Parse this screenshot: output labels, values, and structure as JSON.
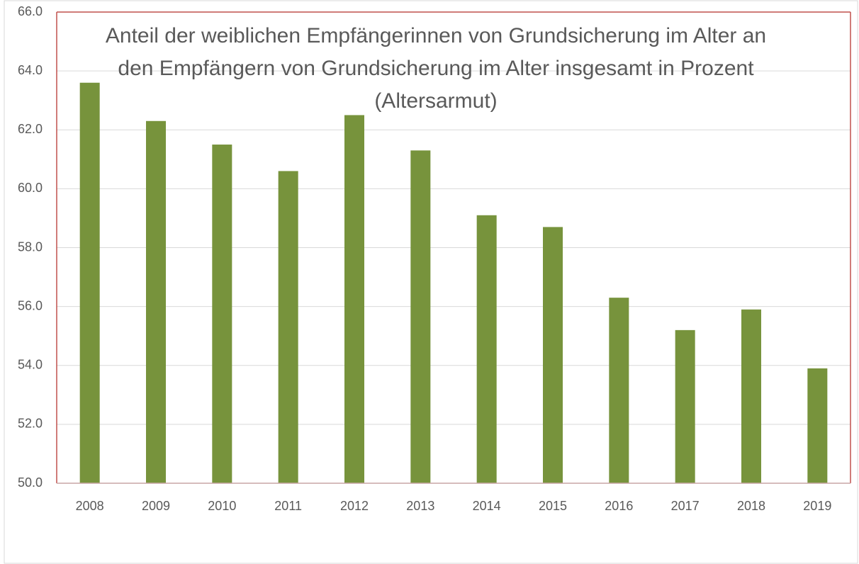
{
  "chart_data": {
    "type": "bar",
    "title": "Anteil der weiblichen Empfängerinnen von Grundsicherung im Alter an den Empfängern von Grundsicherung im Alter insgesamt in Prozent (Altersarmut)",
    "categories": [
      "2008",
      "2009",
      "2010",
      "2011",
      "2012",
      "2013",
      "2014",
      "2015",
      "2016",
      "2017",
      "2018",
      "2019"
    ],
    "values": [
      63.6,
      62.3,
      61.5,
      60.6,
      62.5,
      61.3,
      59.1,
      58.7,
      56.3,
      55.2,
      55.9,
      53.9
    ],
    "color": "#77933c",
    "ylim": [
      50,
      66
    ],
    "yticks": [
      {
        "value": 50,
        "label": "50.0"
      },
      {
        "value": 52,
        "label": "52.0"
      },
      {
        "value": 54,
        "label": "54.0"
      },
      {
        "value": 56,
        "label": "56.0"
      },
      {
        "value": 58,
        "label": "58.0"
      },
      {
        "value": 60,
        "label": "60.0"
      },
      {
        "value": 62,
        "label": "62.0"
      },
      {
        "value": 64,
        "label": "64.0"
      },
      {
        "value": 66,
        "label": "66.0"
      }
    ],
    "grid": true
  }
}
